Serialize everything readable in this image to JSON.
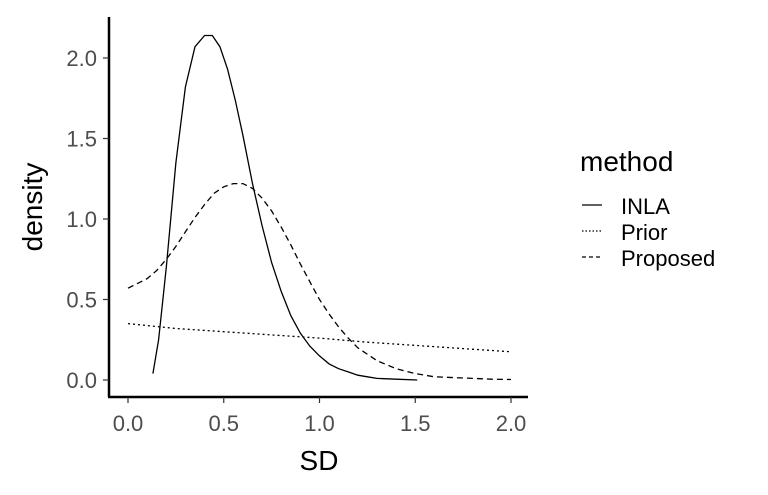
{
  "chart_data": {
    "type": "line",
    "title": "",
    "xlabel": "SD",
    "ylabel": "density",
    "xlim": [
      -0.1,
      2.1
    ],
    "ylim": [
      -0.1,
      2.25
    ],
    "grid": false,
    "legend": {
      "title": "method",
      "placement": "right"
    },
    "x_ticks": [
      {
        "value": 0.0,
        "label": "0.0"
      },
      {
        "value": 0.5,
        "label": "0.5"
      },
      {
        "value": 1.0,
        "label": "1.0"
      },
      {
        "value": 1.5,
        "label": "1.5"
      },
      {
        "value": 2.0,
        "label": "2.0"
      }
    ],
    "y_ticks": [
      {
        "value": 0.0,
        "label": "0.0"
      },
      {
        "value": 0.5,
        "label": "0.5"
      },
      {
        "value": 1.0,
        "label": "1.0"
      },
      {
        "value": 1.5,
        "label": "1.5"
      },
      {
        "value": 2.0,
        "label": "2.0"
      }
    ],
    "series": [
      {
        "name": "INLA",
        "linetype": "solid",
        "color": "#000000",
        "x": [
          0.13,
          0.16,
          0.2,
          0.25,
          0.3,
          0.35,
          0.4,
          0.44,
          0.48,
          0.52,
          0.56,
          0.6,
          0.65,
          0.7,
          0.75,
          0.8,
          0.85,
          0.9,
          0.95,
          1.0,
          1.05,
          1.1,
          1.15,
          1.2,
          1.25,
          1.3,
          1.4,
          1.51
        ],
        "y": [
          0.04,
          0.25,
          0.7,
          1.35,
          1.82,
          2.07,
          2.14,
          2.14,
          2.07,
          1.93,
          1.74,
          1.52,
          1.22,
          0.96,
          0.73,
          0.55,
          0.4,
          0.29,
          0.21,
          0.15,
          0.1,
          0.07,
          0.05,
          0.03,
          0.02,
          0.01,
          0.005,
          0.0
        ]
      },
      {
        "name": "Prior",
        "linetype": "dotted",
        "color": "#000000",
        "x": [
          0.0,
          0.25,
          0.5,
          0.75,
          1.0,
          1.25,
          1.5,
          1.75,
          2.0
        ],
        "y": [
          0.35,
          0.32,
          0.3,
          0.28,
          0.26,
          0.235,
          0.215,
          0.195,
          0.175
        ]
      },
      {
        "name": "Proposed",
        "linetype": "dashed",
        "color": "#000000",
        "x": [
          0.0,
          0.05,
          0.1,
          0.15,
          0.2,
          0.25,
          0.3,
          0.35,
          0.4,
          0.45,
          0.5,
          0.55,
          0.6,
          0.65,
          0.7,
          0.75,
          0.8,
          0.85,
          0.9,
          0.95,
          1.0,
          1.05,
          1.1,
          1.15,
          1.2,
          1.3,
          1.4,
          1.5,
          1.6,
          1.7,
          1.8,
          1.9,
          2.0
        ],
        "y": [
          0.57,
          0.6,
          0.63,
          0.68,
          0.75,
          0.83,
          0.92,
          1.01,
          1.09,
          1.16,
          1.2,
          1.22,
          1.22,
          1.19,
          1.13,
          1.05,
          0.95,
          0.84,
          0.72,
          0.61,
          0.5,
          0.41,
          0.33,
          0.26,
          0.2,
          0.12,
          0.07,
          0.04,
          0.02,
          0.015,
          0.01,
          0.005,
          0.003
        ]
      }
    ]
  }
}
